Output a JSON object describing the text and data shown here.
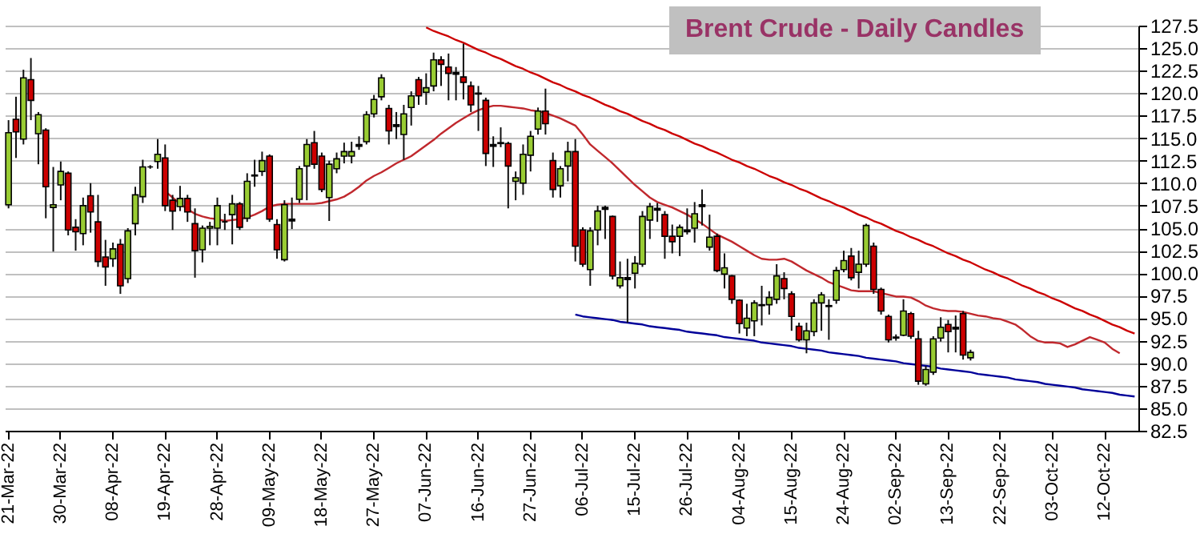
{
  "chart_data": {
    "type": "candlestick",
    "title": "Brent Crude - Daily Candles",
    "categories": [
      "21-Mar-22",
      null,
      null,
      null,
      null,
      null,
      null,
      "30-Mar-22",
      null,
      null,
      null,
      null,
      null,
      null,
      "08-Apr-22",
      null,
      null,
      null,
      null,
      null,
      null,
      "19-Apr-22",
      null,
      null,
      null,
      null,
      null,
      null,
      "28-Apr-22",
      null,
      null,
      null,
      null,
      null,
      null,
      "09-May-22",
      null,
      null,
      null,
      null,
      null,
      null,
      "18-May-22",
      null,
      null,
      null,
      null,
      null,
      null,
      "27-May-22",
      null,
      null,
      null,
      null,
      null,
      null,
      "07-Jun-22",
      null,
      null,
      null,
      null,
      null,
      null,
      "16-Jun-22",
      null,
      null,
      null,
      null,
      null,
      null,
      "27-Jun-22",
      null,
      null,
      null,
      null,
      null,
      null,
      "06-Jul-22",
      null,
      null,
      null,
      null,
      null,
      null,
      "15-Jul-22",
      null,
      null,
      null,
      null,
      null,
      null,
      "26-Jul-22",
      null,
      null,
      null,
      null,
      null,
      null,
      "04-Aug-22",
      null,
      null,
      null,
      null,
      null,
      null,
      "15-Aug-22",
      null,
      null,
      null,
      null,
      null,
      null,
      "24-Aug-22",
      null,
      null,
      null,
      null,
      null,
      null,
      "02-Sep-22",
      null,
      null,
      null,
      null,
      null,
      null,
      "13-Sep-22",
      null,
      null,
      null,
      null,
      null,
      null,
      "22-Sep-22",
      null,
      null,
      null,
      null,
      null,
      null,
      "03-Oct-22",
      null,
      null,
      null,
      null,
      null,
      null,
      "12-Oct-22",
      null,
      null,
      null,
      null
    ],
    "ohlc": [
      [
        107.6,
        117.0,
        107.2,
        115.6
      ],
      [
        117.1,
        119.6,
        112.8,
        115.7
      ],
      [
        114.9,
        122.6,
        114.3,
        121.7
      ],
      [
        121.5,
        123.9,
        117.0,
        119.2
      ],
      [
        115.5,
        117.9,
        112.1,
        117.6
      ],
      [
        115.9,
        116.1,
        106.1,
        109.6
      ],
      [
        107.3,
        111.8,
        102.4,
        107.6
      ],
      [
        109.8,
        112.4,
        108.1,
        111.3
      ],
      [
        111.1,
        111.3,
        104.2,
        104.8
      ],
      [
        105.1,
        106.0,
        102.5,
        104.6
      ],
      [
        104.4,
        108.4,
        103.1,
        107.5
      ],
      [
        108.6,
        110.0,
        104.5,
        106.8
      ],
      [
        105.7,
        108.7,
        100.7,
        101.3
      ],
      [
        101.8,
        103.7,
        98.6,
        100.7
      ],
      [
        101.6,
        103.4,
        100.7,
        102.7
      ],
      [
        103.2,
        103.8,
        97.7,
        98.6
      ],
      [
        99.4,
        105.0,
        98.9,
        104.7
      ],
      [
        105.5,
        109.6,
        104.2,
        108.7
      ],
      [
        108.5,
        112.6,
        107.8,
        111.8
      ],
      [
        111.8,
        112.0,
        111.6,
        111.8
      ],
      [
        112.4,
        114.9,
        111.6,
        113.2
      ],
      [
        112.8,
        114.3,
        106.9,
        107.5
      ],
      [
        108.1,
        108.7,
        104.8,
        106.9
      ],
      [
        107.4,
        109.7,
        106.9,
        108.3
      ],
      [
        108.3,
        108.7,
        105.7,
        106.8
      ],
      [
        105.5,
        107.2,
        99.5,
        102.5
      ],
      [
        102.6,
        105.3,
        101.2,
        105.0
      ],
      [
        105.0,
        105.7,
        103.1,
        105.2
      ],
      [
        105.0,
        108.4,
        103.1,
        107.5
      ],
      [
        105.7,
        106.6,
        104.8,
        105.7
      ],
      [
        106.5,
        108.7,
        103.2,
        107.7
      ],
      [
        107.7,
        107.9,
        104.8,
        105.1
      ],
      [
        106.1,
        111.1,
        105.7,
        110.2
      ],
      [
        110.8,
        112.6,
        109.6,
        110.9
      ],
      [
        111.3,
        113.5,
        110.8,
        112.5
      ],
      [
        113.0,
        113.2,
        105.7,
        106.0
      ],
      [
        105.4,
        106.0,
        101.6,
        102.6
      ],
      [
        101.5,
        108.1,
        101.3,
        107.6
      ],
      [
        105.8,
        108.4,
        104.9,
        106.0
      ],
      [
        108.2,
        111.9,
        107.8,
        111.6
      ],
      [
        111.9,
        114.9,
        108.1,
        114.3
      ],
      [
        114.5,
        115.8,
        111.6,
        112.1
      ],
      [
        113.0,
        113.4,
        109.0,
        109.3
      ],
      [
        108.4,
        112.5,
        105.8,
        112.1
      ],
      [
        111.6,
        113.4,
        111.1,
        112.7
      ],
      [
        113.0,
        114.5,
        112.2,
        113.5
      ],
      [
        113.0,
        114.6,
        112.2,
        113.5
      ],
      [
        114.1,
        115.2,
        113.7,
        114.3
      ],
      [
        114.6,
        118.0,
        114.3,
        117.6
      ],
      [
        117.7,
        119.8,
        117.3,
        119.3
      ],
      [
        119.6,
        122.1,
        119.2,
        121.7
      ],
      [
        118.3,
        118.7,
        114.3,
        115.8
      ],
      [
        116.3,
        117.9,
        114.9,
        116.5
      ],
      [
        115.4,
        118.7,
        112.6,
        117.7
      ],
      [
        118.4,
        120.2,
        116.4,
        119.7
      ],
      [
        121.5,
        121.8,
        118.7,
        119.7
      ],
      [
        120.1,
        122.2,
        118.7,
        120.6
      ],
      [
        120.8,
        124.5,
        120.2,
        123.7
      ],
      [
        123.7,
        124.1,
        120.8,
        123.2
      ],
      [
        122.9,
        124.4,
        119.2,
        122.2
      ],
      [
        122.1,
        122.9,
        119.2,
        122.3
      ],
      [
        121.8,
        125.5,
        119.3,
        121.2
      ],
      [
        120.8,
        121.3,
        117.9,
        118.7
      ],
      [
        119.9,
        120.8,
        115.8,
        120.0
      ],
      [
        119.2,
        119.5,
        111.9,
        113.3
      ],
      [
        114.3,
        115.2,
        111.8,
        114.1
      ],
      [
        114.4,
        116.2,
        114.0,
        114.5
      ],
      [
        114.4,
        114.6,
        107.2,
        111.9
      ],
      [
        110.2,
        111.3,
        108.1,
        110.6
      ],
      [
        110.0,
        114.3,
        108.7,
        113.2
      ],
      [
        113.1,
        115.8,
        111.3,
        115.2
      ],
      [
        116.0,
        118.4,
        115.4,
        118.0
      ],
      [
        118.0,
        120.5,
        115.4,
        116.6
      ],
      [
        112.5,
        113.4,
        108.4,
        109.3
      ],
      [
        109.7,
        111.9,
        108.4,
        111.6
      ],
      [
        111.9,
        114.6,
        110.2,
        113.5
      ],
      [
        113.5,
        114.9,
        101.3,
        103.0
      ],
      [
        104.8,
        105.1,
        100.7,
        101.0
      ],
      [
        100.4,
        105.1,
        98.6,
        104.7
      ],
      [
        104.8,
        107.5,
        103.1,
        106.9
      ],
      [
        107.1,
        107.5,
        103.8,
        107.3
      ],
      [
        106.3,
        106.4,
        99.3,
        99.7
      ],
      [
        98.6,
        101.3,
        98.3,
        99.5
      ],
      [
        99.5,
        101.6,
        94.5,
        99.3
      ],
      [
        100.0,
        101.9,
        98.3,
        101.1
      ],
      [
        101.0,
        106.9,
        100.7,
        106.3
      ],
      [
        105.9,
        107.8,
        103.8,
        107.4
      ],
      [
        107.2,
        107.8,
        105.7,
        107.0
      ],
      [
        106.5,
        106.9,
        101.6,
        104.1
      ],
      [
        104.1,
        105.4,
        102.2,
        103.5
      ],
      [
        104.1,
        105.4,
        101.9,
        105.1
      ],
      [
        104.6,
        107.2,
        104.3,
        104.8
      ],
      [
        105.0,
        107.9,
        103.4,
        106.6
      ],
      [
        107.4,
        109.3,
        105.3,
        107.6
      ],
      [
        102.9,
        106.5,
        102.5,
        104.0
      ],
      [
        104.1,
        104.4,
        100.1,
        100.3
      ],
      [
        99.9,
        102.2,
        98.3,
        100.6
      ],
      [
        99.7,
        99.8,
        96.6,
        97.1
      ],
      [
        97.0,
        97.1,
        93.3,
        94.4
      ],
      [
        93.9,
        96.6,
        93.0,
        95.0
      ],
      [
        94.7,
        97.0,
        93.0,
        96.7
      ],
      [
        96.4,
        98.6,
        94.2,
        96.5
      ],
      [
        96.5,
        98.0,
        95.4,
        97.3
      ],
      [
        97.1,
        101.0,
        96.6,
        99.7
      ],
      [
        99.4,
        100.1,
        97.1,
        98.3
      ],
      [
        97.7,
        98.0,
        93.6,
        95.2
      ],
      [
        94.1,
        94.5,
        92.4,
        92.6
      ],
      [
        92.6,
        94.5,
        91.1,
        93.6
      ],
      [
        93.5,
        97.1,
        93.0,
        96.7
      ],
      [
        96.7,
        97.9,
        93.6,
        97.6
      ],
      [
        96.3,
        97.1,
        92.6,
        96.4
      ],
      [
        97.0,
        100.7,
        96.6,
        100.3
      ],
      [
        100.4,
        102.5,
        100.1,
        101.4
      ],
      [
        101.9,
        102.8,
        99.2,
        99.5
      ],
      [
        100.1,
        102.5,
        98.3,
        101.0
      ],
      [
        101.0,
        105.5,
        100.7,
        105.3
      ],
      [
        103.0,
        103.4,
        97.7,
        98.2
      ],
      [
        98.2,
        98.4,
        95.4,
        95.8
      ],
      [
        95.2,
        95.4,
        92.3,
        92.6
      ],
      [
        92.8,
        93.2,
        92.5,
        92.9
      ],
      [
        93.1,
        97.1,
        93.0,
        95.8
      ],
      [
        95.5,
        95.7,
        92.7,
        93.0
      ],
      [
        92.7,
        93.6,
        87.6,
        88.0
      ],
      [
        87.7,
        89.7,
        87.5,
        89.3
      ],
      [
        89.0,
        93.0,
        88.7,
        92.7
      ],
      [
        92.8,
        95.1,
        92.4,
        94.0
      ],
      [
        94.3,
        94.8,
        91.2,
        93.5
      ],
      [
        94.0,
        95.3,
        91.2,
        93.8
      ],
      [
        95.5,
        95.8,
        90.4,
        90.9
      ],
      [
        90.6,
        91.5,
        90.3,
        91.2
      ],
      null,
      null,
      null,
      null,
      null,
      null,
      null,
      null,
      null,
      null,
      null,
      null,
      null,
      null,
      null,
      null,
      null,
      null,
      null,
      null,
      null,
      null
    ],
    "colors": [
      "#99cc33",
      "#cc0000",
      "#99cc33",
      "#cc0000",
      "#99cc33",
      "#cc0000",
      "#99cc33",
      "#99cc33",
      "#cc0000",
      "#cc0000",
      "#99cc33",
      "#cc0000",
      "#cc0000",
      "#cc0000",
      "#99cc33",
      "#cc0000",
      "#99cc33",
      "#99cc33",
      "#99cc33",
      "#000000",
      "#99cc33",
      "#cc0000",
      "#cc0000",
      "#99cc33",
      "#cc0000",
      "#cc0000",
      "#99cc33",
      "#99cc33",
      "#99cc33",
      "#000000",
      "#99cc33",
      "#cc0000",
      "#99cc33",
      "#000000",
      "#99cc33",
      "#cc0000",
      "#cc0000",
      "#99cc33",
      "#000000",
      "#99cc33",
      "#99cc33",
      "#cc0000",
      "#cc0000",
      "#99cc33",
      "#99cc33",
      "#99cc33",
      "#99cc33",
      "#000000",
      "#99cc33",
      "#99cc33",
      "#99cc33",
      "#cc0000",
      "#000000",
      "#99cc33",
      "#99cc33",
      "#cc0000",
      "#99cc33",
      "#99cc33",
      "#cc0000",
      "#cc0000",
      "#000000",
      "#cc0000",
      "#cc0000",
      "#000000",
      "#cc0000",
      "#000000",
      "#000000",
      "#cc0000",
      "#99cc33",
      "#99cc33",
      "#99cc33",
      "#99cc33",
      "#cc0000",
      "#cc0000",
      "#99cc33",
      "#99cc33",
      "#cc0000",
      "#cc0000",
      "#99cc33",
      "#99cc33",
      "#000000",
      "#cc0000",
      "#99cc33",
      "#000000",
      "#99cc33",
      "#99cc33",
      "#99cc33",
      "#000000",
      "#cc0000",
      "#cc0000",
      "#99cc33",
      "#000000",
      "#99cc33",
      "#000000",
      "#99cc33",
      "#cc0000",
      "#99cc33",
      "#cc0000",
      "#cc0000",
      "#99cc33",
      "#99cc33",
      "#000000",
      "#99cc33",
      "#99cc33",
      "#cc0000",
      "#cc0000",
      "#cc0000",
      "#99cc33",
      "#99cc33",
      "#99cc33",
      "#000000",
      "#99cc33",
      "#99cc33",
      "#cc0000",
      "#99cc33",
      "#99cc33",
      "#cc0000",
      "#cc0000",
      "#cc0000",
      "#000000",
      "#99cc33",
      "#cc0000",
      "#cc0000",
      "#99cc33",
      "#99cc33",
      "#99cc33",
      "#cc0000",
      "#000000",
      "#cc0000",
      "#99cc33",
      null,
      null,
      null,
      null,
      null,
      null,
      null,
      null,
      null,
      null,
      null,
      null,
      null,
      null,
      null,
      null,
      null,
      null,
      null,
      null,
      null,
      null
    ],
    "series": [
      {
        "type": "line",
        "color": "#c0282d",
        "values": [
          null,
          null,
          null,
          null,
          null,
          null,
          null,
          null,
          null,
          null,
          null,
          null,
          null,
          null,
          null,
          null,
          null,
          null,
          null,
          null,
          null,
          109.1,
          108.4,
          107.7,
          107.1,
          106.6,
          106.3,
          106.1,
          106.0,
          105.8,
          105.9,
          106.0,
          106.2,
          106.5,
          106.9,
          107.4,
          107.6,
          107.7,
          107.7,
          107.7,
          107.7,
          107.7,
          107.8,
          108.0,
          108.2,
          108.5,
          109.0,
          109.6,
          110.3,
          110.8,
          111.2,
          111.7,
          112.2,
          112.6,
          113.0,
          113.6,
          114.2,
          114.8,
          115.5,
          116.1,
          116.7,
          117.2,
          117.7,
          118.1,
          118.4,
          118.6,
          118.6,
          118.5,
          118.4,
          118.3,
          118.1,
          118.0,
          117.8,
          117.5,
          117.2,
          116.8,
          116.4,
          115.4,
          114.3,
          113.6,
          112.9,
          112.2,
          111.4,
          110.6,
          109.8,
          109.1,
          108.4,
          107.9,
          107.6,
          107.3,
          106.9,
          106.5,
          106.0,
          105.5,
          104.9,
          104.3,
          103.9,
          103.5,
          103.0,
          102.5,
          102.0,
          101.6,
          101.5,
          101.5,
          101.6,
          101.3,
          100.8,
          100.3,
          99.9,
          99.5,
          99.0,
          98.7,
          98.4,
          98.1,
          98.0,
          98.0,
          98.0,
          97.8,
          97.6,
          97.4,
          97.4,
          97.3,
          96.9,
          96.4,
          96.1,
          95.9,
          95.8,
          95.8,
          95.7,
          95.5,
          95.3,
          95.2,
          95.0,
          94.9,
          94.6,
          94.3,
          93.7,
          93.0,
          92.5,
          92.3,
          92.3,
          92.2,
          91.8,
          92.1,
          92.5,
          92.9,
          92.6,
          92.3,
          91.6,
          91.1,
          null,
          null
        ]
      },
      {
        "type": "line",
        "color": "#cc0000",
        "values": [
          null,
          null,
          null,
          null,
          null,
          null,
          null,
          null,
          null,
          null,
          null,
          null,
          null,
          null,
          null,
          null,
          null,
          null,
          null,
          null,
          null,
          null,
          null,
          null,
          null,
          null,
          null,
          null,
          null,
          null,
          null,
          null,
          null,
          null,
          null,
          null,
          null,
          null,
          null,
          null,
          null,
          null,
          null,
          null,
          null,
          null,
          null,
          null,
          null,
          null,
          null,
          null,
          null,
          null,
          null,
          null,
          127.3,
          126.9,
          126.6,
          126.3,
          125.9,
          125.6,
          125.2,
          124.8,
          124.5,
          124.1,
          123.8,
          123.4,
          123.0,
          122.7,
          122.3,
          122.0,
          121.6,
          121.2,
          120.9,
          120.5,
          120.2,
          119.8,
          119.5,
          119.1,
          118.7,
          118.4,
          118.0,
          117.7,
          117.3,
          116.9,
          116.6,
          116.2,
          115.9,
          115.5,
          115.2,
          114.8,
          114.4,
          114.1,
          113.7,
          113.4,
          113.0,
          112.6,
          112.3,
          111.9,
          111.6,
          111.2,
          110.8,
          110.5,
          110.1,
          109.8,
          109.4,
          109.1,
          108.7,
          108.3,
          108.0,
          107.6,
          107.3,
          106.9,
          106.5,
          106.2,
          105.8,
          105.5,
          105.1,
          104.7,
          104.4,
          104.0,
          103.7,
          103.3,
          103.0,
          102.6,
          102.2,
          101.9,
          101.5,
          101.2,
          100.8,
          100.4,
          100.1,
          99.7,
          99.4,
          99.0,
          98.6,
          98.3,
          97.9,
          97.6,
          97.2,
          96.9,
          96.5,
          96.1,
          95.8,
          95.4,
          95.1,
          94.7,
          94.3,
          94.0,
          93.6,
          93.3
        ]
      },
      {
        "type": "line",
        "color": "#000099",
        "values": [
          null,
          null,
          null,
          null,
          null,
          null,
          null,
          null,
          null,
          null,
          null,
          null,
          null,
          null,
          null,
          null,
          null,
          null,
          null,
          null,
          null,
          null,
          null,
          null,
          null,
          null,
          null,
          null,
          null,
          null,
          null,
          null,
          null,
          null,
          null,
          null,
          null,
          null,
          null,
          null,
          null,
          null,
          null,
          null,
          null,
          null,
          null,
          null,
          null,
          null,
          null,
          null,
          null,
          null,
          null,
          null,
          null,
          null,
          null,
          null,
          null,
          null,
          null,
          null,
          null,
          null,
          null,
          null,
          null,
          null,
          null,
          null,
          null,
          null,
          null,
          null,
          95.4,
          95.2,
          95.1,
          95.0,
          94.9,
          94.8,
          94.6,
          94.5,
          94.4,
          94.3,
          94.1,
          94.0,
          93.9,
          93.8,
          93.7,
          93.5,
          93.4,
          93.3,
          93.2,
          93.1,
          92.9,
          92.8,
          92.7,
          92.6,
          92.5,
          92.3,
          92.2,
          92.1,
          92.0,
          91.9,
          91.7,
          91.6,
          91.5,
          91.4,
          91.2,
          91.1,
          91.0,
          90.9,
          90.8,
          90.6,
          90.5,
          90.4,
          90.3,
          90.2,
          90.0,
          89.9,
          89.8,
          89.7,
          89.6,
          89.4,
          89.3,
          89.2,
          89.1,
          89.0,
          88.8,
          88.7,
          88.6,
          88.5,
          88.4,
          88.2,
          88.1,
          88.0,
          87.9,
          87.7,
          87.6,
          87.5,
          87.4,
          87.3,
          87.1,
          87.0,
          86.9,
          86.8,
          86.7,
          86.5,
          86.4,
          86.3
        ]
      }
    ],
    "ylim": [
      82.5,
      127.5
    ],
    "yticks": [
      {
        "value": 82.5,
        "label": "82.5"
      },
      {
        "value": 85,
        "label": "85.0"
      },
      {
        "value": 87.5,
        "label": "87.5"
      },
      {
        "value": 90,
        "label": "90.0"
      },
      {
        "value": 92.5,
        "label": "92.5"
      },
      {
        "value": 95,
        "label": "95.0"
      },
      {
        "value": 97.5,
        "label": "97.5"
      },
      {
        "value": 100,
        "label": "100.0"
      },
      {
        "value": 102.5,
        "label": "102.5"
      },
      {
        "value": 105,
        "label": "105.0"
      },
      {
        "value": 107.5,
        "label": "107.5"
      },
      {
        "value": 110,
        "label": "110.0"
      },
      {
        "value": 112.5,
        "label": "112.5"
      },
      {
        "value": 115,
        "label": "115.0"
      },
      {
        "value": 117.5,
        "label": "117.5"
      },
      {
        "value": 120,
        "label": "120.0"
      },
      {
        "value": 122.5,
        "label": "122.5"
      },
      {
        "value": 125,
        "label": "125.0"
      },
      {
        "value": 127.5,
        "label": "127.5"
      }
    ],
    "grid": "y"
  }
}
